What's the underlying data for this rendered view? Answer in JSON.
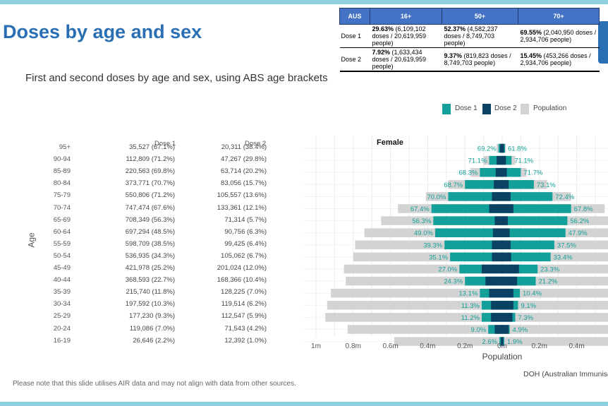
{
  "slide": {
    "title": "Doses by age and sex",
    "subtitle": "First and second doses by age and sex, using ABS age brackets",
    "note": "Please note that this slide utilises AIR data and may not align with data from other sources.",
    "source": "DOH (Australian Immunisati",
    "colors": {
      "accent": "#2a6fb4",
      "strip": "#8fd0e0"
    }
  },
  "summary_table": {
    "headers": [
      "AUS",
      "16+",
      "50+",
      "70+"
    ],
    "rows": [
      {
        "label": "Dose 1",
        "cells": [
          {
            "pct": "29.63%",
            "detail": " (6,109,102 doses / 20,619,959 people)"
          },
          {
            "pct": "52.37%",
            "detail": " (4,582,237 doses / 8,749,703 people)"
          },
          {
            "pct": "69.55%",
            "detail": " (2,040,950 doses / 2,934,706 people)"
          }
        ]
      },
      {
        "label": "Dose 2",
        "cells": [
          {
            "pct": "7.92%",
            "detail": " (1,633,434 doses / 20,619,959 people)"
          },
          {
            "pct": "9.37%",
            "detail": " (819,823 doses / 8,749,703 people)"
          },
          {
            "pct": "15.45%",
            "detail": " (453,266 doses / 2,934,706 people)"
          }
        ]
      }
    ]
  },
  "legend": {
    "items": [
      {
        "label": "Dose 1",
        "color": "#14a09a"
      },
      {
        "label": "Dose 2",
        "color": "#0b4263"
      },
      {
        "label": "Population",
        "color": "#d3d3d3"
      }
    ]
  },
  "chart_data": {
    "type": "bar",
    "subtype": "population-pyramid",
    "ylabel": "Age",
    "xlabel": "Population",
    "panels": [
      "Female"
    ],
    "column_headers": [
      "Dose 1",
      "Dose 2"
    ],
    "x_ticks": [
      "1m",
      "0.8m",
      "0.6m",
      "0.4m",
      "0.2m",
      "0m",
      "0.2m",
      "0.4m"
    ],
    "xlim": [
      -1.0,
      0.55
    ],
    "unit_note": "values in millions of people",
    "grid": true,
    "legend_position": "top-right",
    "categories": [
      "95+",
      "90-94",
      "85-89",
      "80-84",
      "75-79",
      "70-74",
      "65-69",
      "60-64",
      "55-59",
      "50-54",
      "45-49",
      "40-44",
      "35-39",
      "30-34",
      "25-29",
      "20-24",
      "16-19"
    ],
    "dose1_totals": [
      "35,527 (67.1%)",
      "112,809 (71.2%)",
      "220,563 (69.8%)",
      "373,771 (70.7%)",
      "550,806 (71.2%)",
      "747,474 (67.6%)",
      "708,349 (56.3%)",
      "697,294 (48.5%)",
      "598,709 (38.5%)",
      "536,935 (34.3%)",
      "421,978 (25.2%)",
      "368,593 (22.7%)",
      "215,740 (11.8%)",
      "197,592 (10.3%)",
      "177,230 (9.3%)",
      "119,086 (7.0%)",
      "26,646 (2.2%)"
    ],
    "dose2_totals": [
      "20,311 (38.4%)",
      "47,267 (29.8%)",
      "63,714 (20.2%)",
      "83,056 (15.7%)",
      "105,557 (13.6%)",
      "133,361 (12.1%)",
      "71,314 (5.7%)",
      "90,756 (6.3%)",
      "99,425 (6.4%)",
      "105,062 (6.7%)",
      "201,024 (12.0%)",
      "168,366 (10.4%)",
      "128,225 (7.0%)",
      "119,514 (6.2%)",
      "112,547 (5.9%)",
      "71,543 (4.2%)",
      "12,392 (1.0%)"
    ],
    "female_dose1_pct": [
      "69.2%",
      "71.1%",
      "68.3%",
      "68.7%",
      "70.0%",
      "67.4%",
      "56.3%",
      "49.0%",
      "39.3%",
      "35.1%",
      "27.0%",
      "24.3%",
      "13.1%",
      "11.3%",
      "11.2%",
      "9.0%",
      "2.6%"
    ],
    "male_dose1_pct": [
      "61.8%",
      "71.1%",
      "71.7%",
      "73.1%",
      "72.4%",
      "67.8%",
      "56.2%",
      "47.9%",
      "37.5%",
      "33.4%",
      "23.3%",
      "21.2%",
      "10.4%",
      "9.1%",
      "7.3%",
      "4.9%",
      "1.9%"
    ],
    "series": [
      {
        "name": "Population",
        "female": [
          0.03,
          0.1,
          0.17,
          0.29,
          0.41,
          0.56,
          0.65,
          0.74,
          0.79,
          0.8,
          0.85,
          0.84,
          0.92,
          0.94,
          0.95,
          0.83,
          0.58
        ],
        "male": [
          0.02,
          0.07,
          0.13,
          0.24,
          0.37,
          0.55,
          0.63,
          0.72,
          0.76,
          0.76,
          0.83,
          0.83,
          0.91,
          0.95,
          0.95,
          0.83,
          0.58
        ]
      },
      {
        "name": "Dose 1",
        "female": [
          0.02,
          0.07,
          0.12,
          0.2,
          0.29,
          0.38,
          0.37,
          0.36,
          0.31,
          0.28,
          0.23,
          0.2,
          0.12,
          0.11,
          0.11,
          0.075,
          0.015
        ],
        "male": [
          0.015,
          0.05,
          0.1,
          0.17,
          0.27,
          0.37,
          0.35,
          0.34,
          0.28,
          0.26,
          0.19,
          0.18,
          0.095,
          0.085,
          0.07,
          0.04,
          0.011
        ]
      },
      {
        "name": "Dose 2",
        "female": [
          0.012,
          0.03,
          0.035,
          0.045,
          0.055,
          0.07,
          0.04,
          0.05,
          0.055,
          0.055,
          0.11,
          0.09,
          0.07,
          0.06,
          0.06,
          0.04,
          0.007
        ],
        "male": [
          0.01,
          0.02,
          0.025,
          0.035,
          0.045,
          0.06,
          0.03,
          0.04,
          0.045,
          0.048,
          0.09,
          0.08,
          0.06,
          0.06,
          0.055,
          0.035,
          0.006
        ]
      }
    ]
  }
}
